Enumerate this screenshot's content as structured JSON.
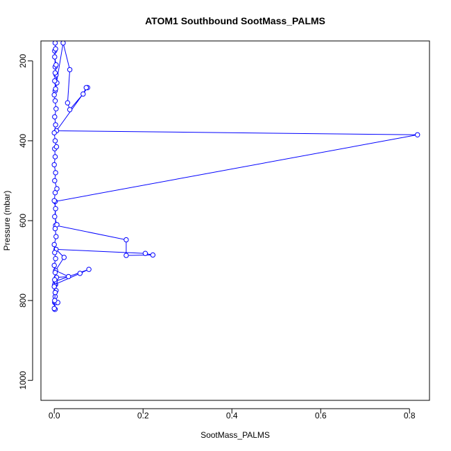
{
  "chart_data": {
    "type": "line",
    "title": "ATOM1 Southbound SootMass_PALMS",
    "xlabel": "SootMass_PALMS",
    "ylabel": "Pressure (mbar)",
    "xlim": [
      -0.03,
      0.845
    ],
    "ylim": [
      1050,
      150
    ],
    "y_reversed": true,
    "grid": false,
    "legend": "none",
    "x_ticks": [
      0.0,
      0.2,
      0.4,
      0.6,
      0.8
    ],
    "x_tick_labels": [
      "0.0",
      "0.2",
      "0.4",
      "0.6",
      "0.8"
    ],
    "y_ticks": [
      200,
      400,
      600,
      800,
      1000
    ],
    "y_tick_labels": [
      "200",
      "400",
      "600",
      "800",
      "1000"
    ],
    "series": [
      {
        "color": "#0000ff",
        "marker": "open-circle",
        "points": [
          [
            0.001,
            822
          ],
          [
            0.002,
            822
          ],
          [
            0.001,
            805
          ],
          [
            0.003,
            805
          ],
          [
            0.008,
            805
          ],
          [
            0.002,
            790
          ],
          [
            0.004,
            775
          ],
          [
            0.003,
            760
          ],
          [
            0.001,
            760
          ],
          [
            0.058,
            732
          ],
          [
            0.078,
            722
          ],
          [
            0.002,
            752
          ],
          [
            0.005,
            742
          ],
          [
            0.032,
            740
          ],
          [
            0.003,
            725
          ],
          [
            0.022,
            692
          ],
          [
            0.004,
            672
          ],
          [
            0.205,
            682
          ],
          [
            0.222,
            686
          ],
          [
            0.162,
            687
          ],
          [
            0.162,
            648
          ],
          [
            0.003,
            612
          ],
          [
            0.002,
            552
          ],
          [
            0.818,
            385
          ],
          [
            0.005,
            375
          ],
          [
            0.075,
            267
          ],
          [
            0.072,
            267
          ],
          [
            0.065,
            283
          ],
          [
            0.035,
            322
          ],
          [
            0.03,
            305
          ],
          [
            0.035,
            222
          ],
          [
            0.02,
            155
          ],
          [
            0.002,
            275
          ],
          [
            0.006,
            255
          ],
          [
            0.004,
            235
          ],
          [
            0.002,
            215
          ],
          [
            0.001,
            175
          ]
        ]
      },
      {
        "color": "#0000ff",
        "marker": "open-circle",
        "points": [
          [
            0.0,
            820
          ],
          [
            0.001,
            800
          ],
          [
            0.002,
            780
          ],
          [
            0.0,
            765
          ],
          [
            0.001,
            748
          ],
          [
            0.002,
            730
          ],
          [
            0.0,
            712
          ],
          [
            0.003,
            695
          ],
          [
            0.001,
            680
          ],
          [
            0.0,
            660
          ],
          [
            0.004,
            640
          ],
          [
            0.002,
            620
          ],
          [
            0.006,
            610
          ],
          [
            0.001,
            590
          ],
          [
            0.003,
            570
          ],
          [
            0.0,
            550
          ],
          [
            0.002,
            530
          ],
          [
            0.006,
            520
          ],
          [
            0.001,
            500
          ],
          [
            0.003,
            480
          ],
          [
            0.0,
            460
          ],
          [
            0.002,
            440
          ],
          [
            0.001,
            420
          ],
          [
            0.005,
            415
          ],
          [
            0.002,
            400
          ],
          [
            0.0,
            380
          ],
          [
            0.003,
            360
          ],
          [
            0.001,
            340
          ],
          [
            0.004,
            320
          ],
          [
            0.002,
            300
          ],
          [
            0.0,
            285
          ],
          [
            0.003,
            270
          ],
          [
            0.001,
            250
          ],
          [
            0.002,
            230
          ],
          [
            0.004,
            210
          ],
          [
            0.001,
            190
          ],
          [
            0.003,
            170
          ],
          [
            0.002,
            155
          ]
        ]
      }
    ]
  }
}
